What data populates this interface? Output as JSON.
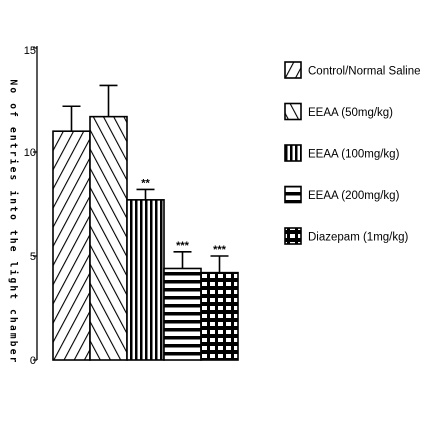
{
  "chart_data": {
    "type": "bar",
    "title": "",
    "ylabel": "No of entries into the light chamber",
    "xlabel": "",
    "ylim": [
      0,
      15
    ],
    "yticks": [
      "0",
      "5",
      "10",
      "15"
    ],
    "grid": false,
    "legend_position": "right",
    "bars": [
      {
        "name": "Control/Normal Saline",
        "value": 11.0,
        "error": 1.2,
        "significance": "",
        "pattern": "diag-down"
      },
      {
        "name": "EEAA (50mg/kg)",
        "value": 11.7,
        "error": 1.5,
        "significance": "",
        "pattern": "diag-up"
      },
      {
        "name": "EEAA (100mg/kg)",
        "value": 7.7,
        "error": 0.5,
        "significance": "**",
        "pattern": "vertical"
      },
      {
        "name": "EEAA (200mg/kg)",
        "value": 4.4,
        "error": 0.8,
        "significance": "***",
        "pattern": "horizontal"
      },
      {
        "name": "Diazepam (1mg/kg)",
        "value": 4.2,
        "error": 0.8,
        "significance": "***",
        "pattern": "grid"
      }
    ],
    "colors": {
      "ink": "#000000",
      "background": "#ffffff"
    }
  }
}
